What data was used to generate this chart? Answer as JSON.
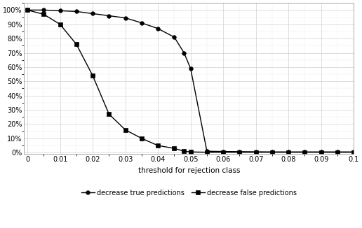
{
  "true_x": [
    0,
    0.005,
    0.01,
    0.015,
    0.02,
    0.025,
    0.03,
    0.035,
    0.04,
    0.045,
    0.048,
    0.05,
    0.055,
    0.06,
    0.065,
    0.07,
    0.075,
    0.08,
    0.085,
    0.09,
    0.095,
    0.1
  ],
  "true_y": [
    1.0,
    1.0,
    0.995,
    0.99,
    0.975,
    0.96,
    0.945,
    0.91,
    0.87,
    0.81,
    0.7,
    0.59,
    0.01,
    0.008,
    0.007,
    0.006,
    0.005,
    0.005,
    0.005,
    0.005,
    0.005,
    0.005
  ],
  "false_x": [
    0,
    0.005,
    0.01,
    0.015,
    0.02,
    0.025,
    0.03,
    0.035,
    0.04,
    0.045,
    0.048,
    0.05,
    0.055,
    0.06,
    0.065,
    0.07,
    0.075,
    0.08,
    0.085,
    0.09,
    0.095,
    0.1
  ],
  "false_y": [
    1.0,
    0.97,
    0.9,
    0.76,
    0.54,
    0.27,
    0.16,
    0.1,
    0.05,
    0.03,
    0.01,
    0.005,
    0.003,
    0.003,
    0.003,
    0.003,
    0.003,
    0.003,
    0.003,
    0.003,
    0.003,
    0.003
  ],
  "xlabel": "threshold for rejection class",
  "legend_true": "decrease true predictions",
  "legend_false": "decrease false predictions",
  "line_color": "#000000",
  "xlim": [
    -0.001,
    0.1
  ],
  "ylim": [
    -0.01,
    1.05
  ],
  "xticks": [
    0,
    0.01,
    0.02,
    0.03,
    0.04,
    0.05,
    0.06,
    0.07,
    0.08,
    0.09,
    0.1
  ],
  "yticks": [
    0.0,
    0.1,
    0.2,
    0.3,
    0.4,
    0.5,
    0.6,
    0.7,
    0.8,
    0.9,
    1.0
  ],
  "xlabel_fontsize": 7.5,
  "tick_fontsize": 7,
  "legend_fontsize": 7,
  "grid_color": "#d0d0d0",
  "grid_minor_color": "#e8e8e8"
}
